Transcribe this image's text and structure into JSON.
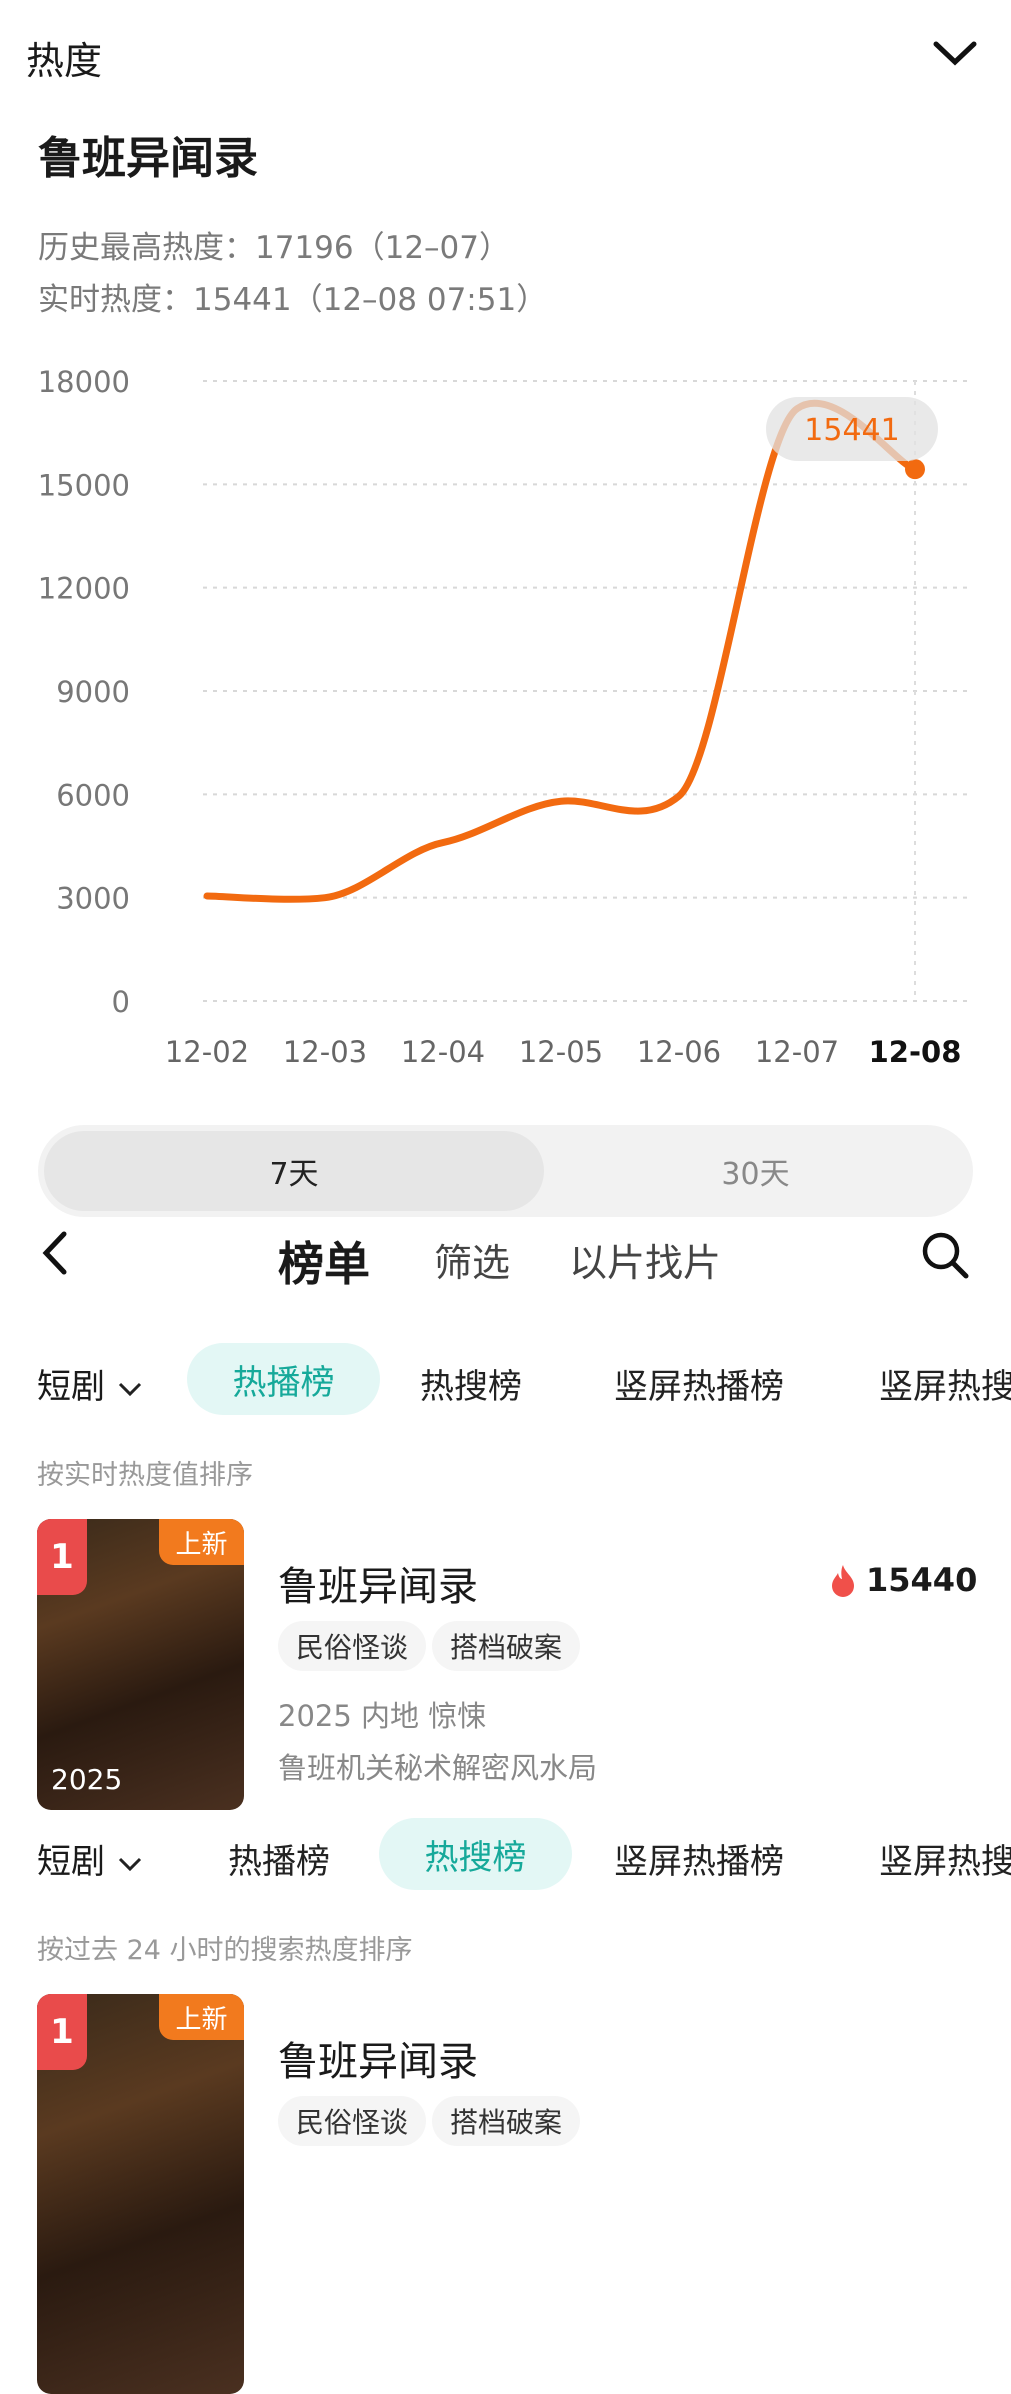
{
  "header": {
    "title": "热度",
    "collapse_icon": "chevron-down-icon"
  },
  "show": {
    "title": "鲁班异闻录",
    "history_high": "历史最高热度：17196（12–07）",
    "realtime": "实时热度：15441（12–08 07:51）"
  },
  "chart_data": {
    "type": "line",
    "categories": [
      "12-02",
      "12-03",
      "12-04",
      "12-05",
      "12-06",
      "12-07",
      "12-08"
    ],
    "values": [
      3050,
      3000,
      4600,
      5800,
      5950,
      17196,
      15441
    ],
    "yticks": [
      0,
      3000,
      6000,
      9000,
      12000,
      15000,
      18000
    ],
    "ylim": [
      0,
      18000
    ],
    "grid": true,
    "highlight_label": "15441",
    "color": "#f26a10"
  },
  "range_tabs": [
    "7天",
    "30天"
  ],
  "nav": {
    "title": "榜单",
    "filter": "筛选",
    "find": "以片找片"
  },
  "sections": [
    {
      "category": "短剧",
      "tabs": [
        "热播榜",
        "热搜榜",
        "竖屏热播榜",
        "竖屏热搜"
      ],
      "active": 0,
      "note": "按实时热度值排序",
      "item": {
        "rank": "1",
        "badge": "上新",
        "poster_text": "2025",
        "title": "鲁班异闻录",
        "heat": "15440",
        "tags": [
          "民俗怪谈",
          "搭档破案"
        ],
        "meta": "2025 内地 惊悚",
        "desc": "鲁班机关秘术解密风水局"
      }
    },
    {
      "category": "短剧",
      "tabs": [
        "热播榜",
        "热搜榜",
        "竖屏热播榜",
        "竖屏热搜"
      ],
      "active": 1,
      "note": "按过去 24 小时的搜索热度排序",
      "item": {
        "rank": "1",
        "badge": "上新",
        "title": "鲁班异闻录",
        "tags": [
          "民俗怪谈",
          "搭档破案"
        ]
      }
    }
  ]
}
